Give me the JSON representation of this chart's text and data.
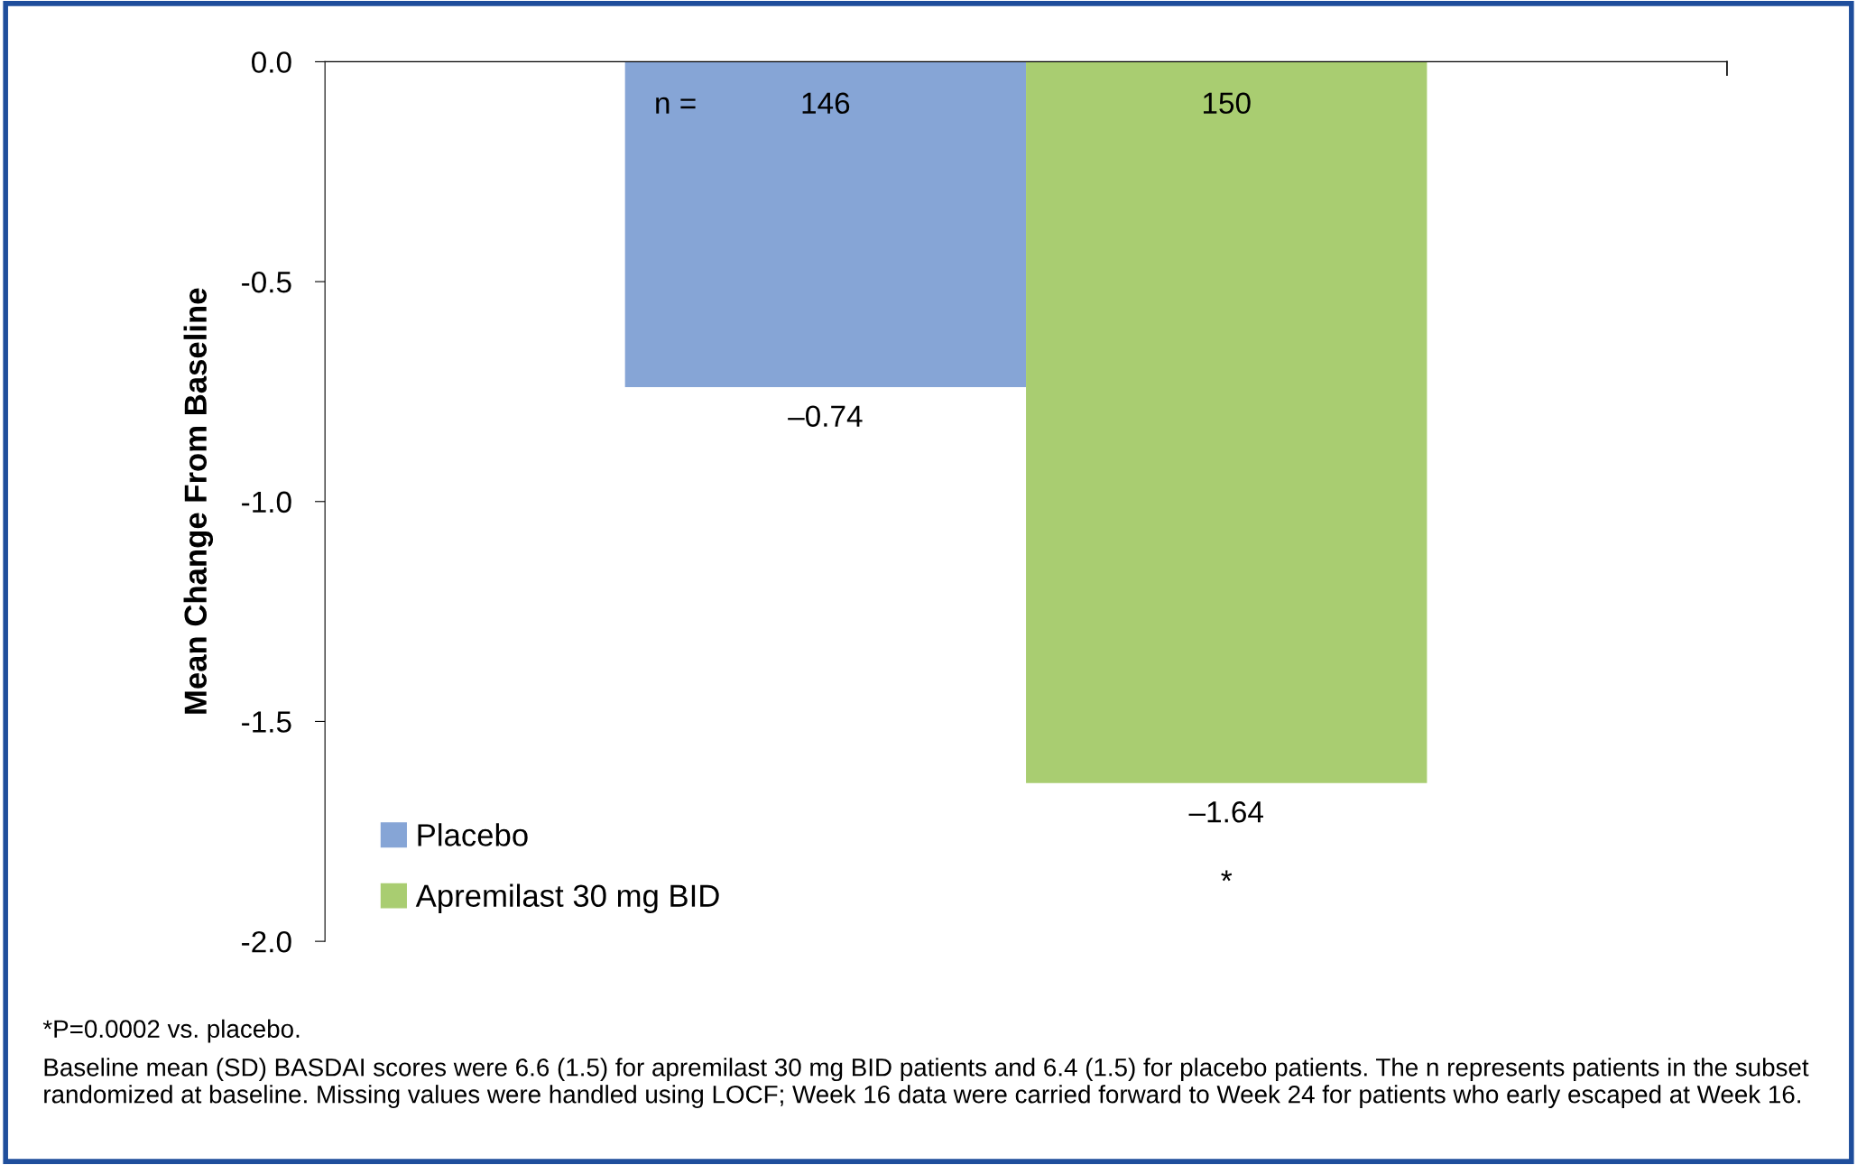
{
  "chart_data": {
    "type": "bar",
    "ylabel": "Mean Change From Baseline",
    "categories": [
      null
    ],
    "series": [
      {
        "name": "Placebo",
        "color": "#86a5d6",
        "values": [
          -0.74
        ],
        "value_labels": [
          "–0.74"
        ]
      },
      {
        "name": "Apremilast 30 mg BID",
        "color": "#a9cd71",
        "values": [
          -1.64
        ],
        "value_labels": [
          "–1.64"
        ]
      }
    ],
    "ylim": [
      -2.0,
      0.0
    ],
    "yticks": [
      {
        "value": 0.0,
        "label": "0.0"
      },
      {
        "value": -0.5,
        "label": "-0.5"
      },
      {
        "value": -1.0,
        "label": "-1.0"
      },
      {
        "value": -1.5,
        "label": "-1.5"
      },
      {
        "value": -2.0,
        "label": "-2.0"
      }
    ],
    "grid": false,
    "legend": "bottom left",
    "annotations": [
      "n =",
      "146",
      "150",
      "*",
      "*P=0.0002 vs. placebo.",
      "Baseline mean (SD) BASDAI scores were 6.6 (1.5) for apremilast 30 mg BID patients and 6.4 (1.5) for placebo patients. The n represents patients in the subset randomized at baseline. Missing values were handled using LOCF; Week 16 data were carried forward to Week 24 for patients who early escaped at Week 16."
    ]
  }
}
